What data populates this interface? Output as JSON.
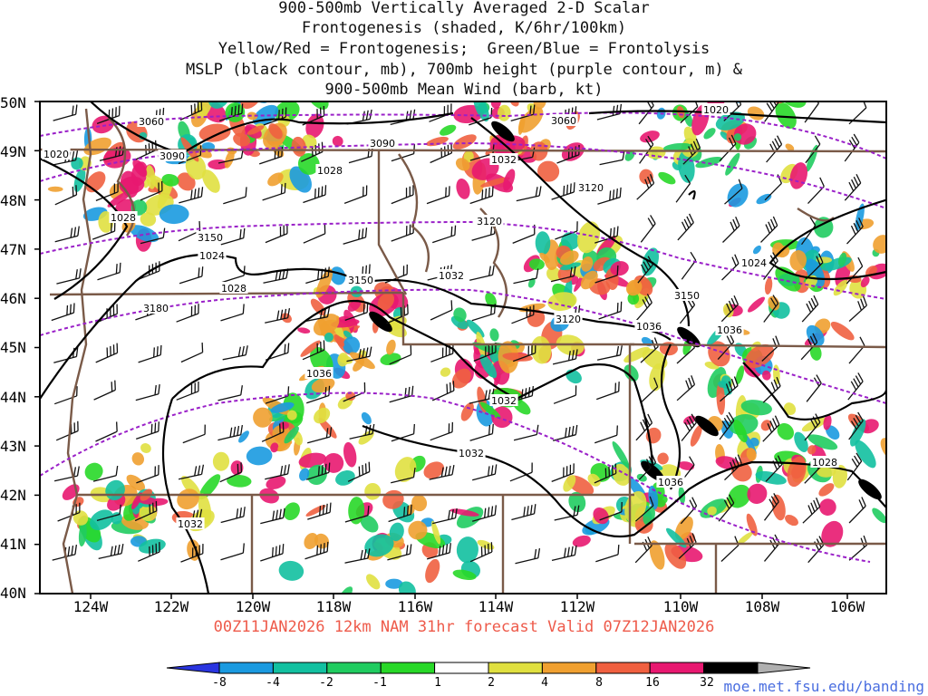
{
  "title": {
    "lines": [
      "900-500mb Vertically Averaged 2-D Scalar",
      "Frontogenesis (shaded, K/6hr/100km)",
      "Yellow/Red = Frontogenesis;  Green/Blue = Frontolysis",
      "MSLP (black contour, mb), 700mb height (purple contour, m) &",
      "900-500mb Mean Wind (barb, kt)"
    ]
  },
  "valid_line": "00Z11JAN2026 12km NAM 31hr forecast Valid 07Z12JAN2026",
  "credit": "moe.met.fsu.edu/banding",
  "axes": {
    "lat_labels": [
      "50N",
      "49N",
      "48N",
      "47N",
      "46N",
      "45N",
      "44N",
      "43N",
      "42N",
      "41N",
      "40N"
    ],
    "lon_labels": [
      "124W",
      "122W",
      "120W",
      "118W",
      "116W",
      "114W",
      "112W",
      "110W",
      "108W",
      "106W"
    ]
  },
  "colorbar": {
    "ticks": [
      "-8",
      "-4",
      "-2",
      "-1",
      "1",
      "2",
      "4",
      "8",
      "16",
      "32"
    ],
    "colors": [
      "#2a35e0",
      "#1a9ae0",
      "#12c0a0",
      "#20cc60",
      "#28d828",
      "#ffffff",
      "#e0e040",
      "#f0a030",
      "#f06040",
      "#e81870",
      "#000000",
      "#b0b0b0"
    ]
  },
  "contour_labels": {
    "mslp": [
      "1020",
      "1028",
      "1024",
      "1028",
      "1032",
      "1028",
      "1032",
      "1036",
      "1036",
      "1036",
      "1032",
      "1032",
      "1036",
      "1032",
      "1028",
      "1024",
      "1020"
    ],
    "height": [
      "3060",
      "3090",
      "3060",
      "3090",
      "3120",
      "3120",
      "3150",
      "3150",
      "3150",
      "3180",
      "3120"
    ]
  },
  "colors": {
    "state_border": "#7a5a48",
    "mslp": "#000000",
    "height": "#9a20c8",
    "valid_text": "#ee5a4a",
    "credit_text": "#4a6ee0"
  }
}
